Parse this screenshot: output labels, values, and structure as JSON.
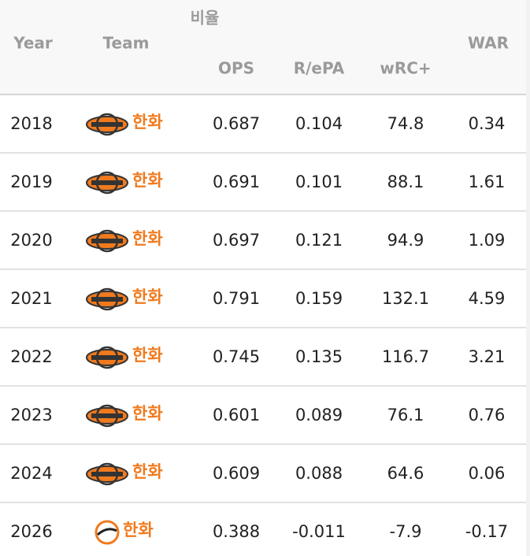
{
  "header": {
    "group": "비율",
    "columns": [
      "Year",
      "Team",
      "OPS",
      "R/ePA",
      "wRC+",
      "WAR"
    ]
  },
  "rows": [
    [
      "2018",
      "한화",
      "0.687",
      "0.104",
      "74.8",
      "0.34"
    ],
    [
      "2019",
      "한화",
      "0.691",
      "0.101",
      "88.1",
      "1.61"
    ],
    [
      "2020",
      "한화",
      "0.697",
      "0.121",
      "94.9",
      "1.09"
    ],
    [
      "2021",
      "한화",
      "0.791",
      "0.159",
      "132.1",
      "4.59"
    ],
    [
      "2022",
      "한화",
      "0.745",
      "0.135",
      "116.7",
      "3.21"
    ],
    [
      "2023",
      "한화",
      "0.601",
      "0.089",
      "76.1",
      "0.76"
    ],
    [
      "2024",
      "한화",
      "0.609",
      "0.088",
      "64.6",
      "0.06"
    ],
    [
      "2026",
      "한화",
      "0.388",
      "-0.011",
      "-7.9",
      "-0.17"
    ]
  ]
}
